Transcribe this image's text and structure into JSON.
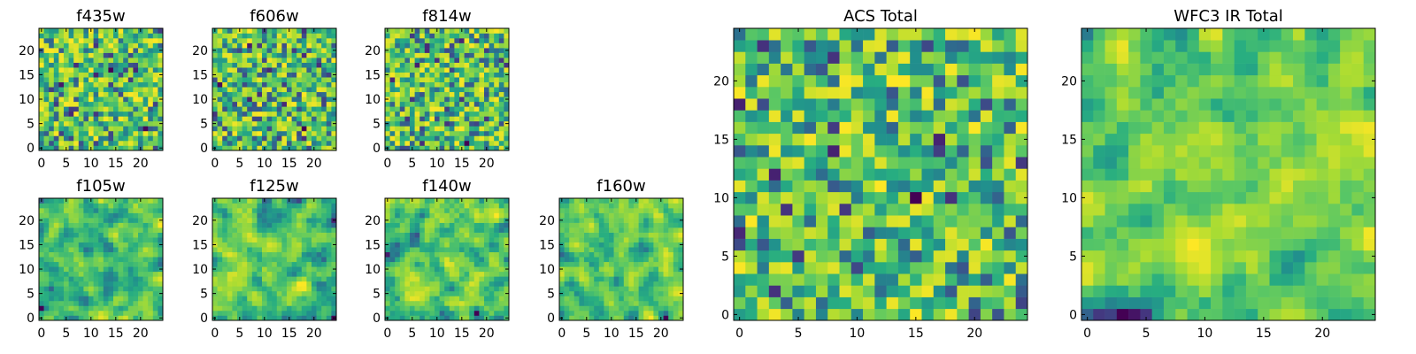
{
  "figure": {
    "colormap": "viridis",
    "colors": {
      "background": "#ffffff",
      "axis_frame": "#000000",
      "viridis_low": "#440154",
      "viridis_mid": "#21918c",
      "viridis_high": "#fde725"
    }
  },
  "chart_data": [
    {
      "type": "heatmap",
      "title": "f435w",
      "xlim": [
        0,
        24
      ],
      "ylim": [
        0,
        24
      ],
      "xticks": [
        "0",
        "5",
        "10",
        "15",
        "20"
      ],
      "yticks": [
        "0",
        "5",
        "10",
        "15",
        "20"
      ],
      "grid": false,
      "colorbar": false,
      "seed": 11,
      "noise": "speckle"
    },
    {
      "type": "heatmap",
      "title": "f606w",
      "xlim": [
        0,
        24
      ],
      "ylim": [
        0,
        24
      ],
      "xticks": [
        "0",
        "5",
        "10",
        "15",
        "20"
      ],
      "yticks": [
        "0",
        "5",
        "10",
        "15",
        "20"
      ],
      "grid": false,
      "colorbar": false,
      "seed": 23,
      "noise": "speckle"
    },
    {
      "type": "heatmap",
      "title": "f814w",
      "xlim": [
        0,
        24
      ],
      "ylim": [
        0,
        24
      ],
      "xticks": [
        "0",
        "5",
        "10",
        "15",
        "20"
      ],
      "yticks": [
        "0",
        "5",
        "10",
        "15",
        "20"
      ],
      "grid": false,
      "colorbar": false,
      "seed": 37,
      "noise": "speckle"
    },
    {
      "type": "heatmap",
      "title": "f105w",
      "xlim": [
        0,
        24
      ],
      "ylim": [
        0,
        24
      ],
      "xticks": [
        "0",
        "5",
        "10",
        "15",
        "20"
      ],
      "yticks": [
        "0",
        "5",
        "10",
        "15",
        "20"
      ],
      "grid": false,
      "colorbar": false,
      "seed": 41,
      "noise": "smooth"
    },
    {
      "type": "heatmap",
      "title": "f125w",
      "xlim": [
        0,
        24
      ],
      "ylim": [
        0,
        24
      ],
      "xticks": [
        "0",
        "5",
        "10",
        "15",
        "20"
      ],
      "yticks": [
        "0",
        "5",
        "10",
        "15",
        "20"
      ],
      "grid": false,
      "colorbar": false,
      "seed": 53,
      "noise": "smooth"
    },
    {
      "type": "heatmap",
      "title": "f140w",
      "xlim": [
        0,
        24
      ],
      "ylim": [
        0,
        24
      ],
      "xticks": [
        "0",
        "5",
        "10",
        "15",
        "20"
      ],
      "yticks": [
        "0",
        "5",
        "10",
        "15",
        "20"
      ],
      "grid": false,
      "colorbar": false,
      "seed": 67,
      "noise": "smooth"
    },
    {
      "type": "heatmap",
      "title": "f160w",
      "xlim": [
        0,
        24
      ],
      "ylim": [
        0,
        24
      ],
      "xticks": [
        "0",
        "5",
        "10",
        "15",
        "20"
      ],
      "yticks": [
        "0",
        "5",
        "10",
        "15",
        "20"
      ],
      "grid": false,
      "colorbar": false,
      "seed": 79,
      "noise": "smooth"
    },
    {
      "type": "heatmap",
      "title": "ACS Total",
      "xlim": [
        0,
        24
      ],
      "ylim": [
        0,
        24
      ],
      "xticks": [
        "0",
        "5",
        "10",
        "15",
        "20"
      ],
      "yticks": [
        "0",
        "5",
        "10",
        "15",
        "20"
      ],
      "grid": false,
      "colorbar": false,
      "seed": 89,
      "noise": "speckle"
    },
    {
      "type": "heatmap",
      "title": "WFC3 IR Total",
      "xlim": [
        0,
        24
      ],
      "ylim": [
        0,
        24
      ],
      "xticks": [
        "0",
        "5",
        "10",
        "15",
        "20"
      ],
      "yticks": [
        "0",
        "5",
        "10",
        "15",
        "20"
      ],
      "grid": false,
      "colorbar": false,
      "seed": 97,
      "noise": "smooth"
    }
  ]
}
